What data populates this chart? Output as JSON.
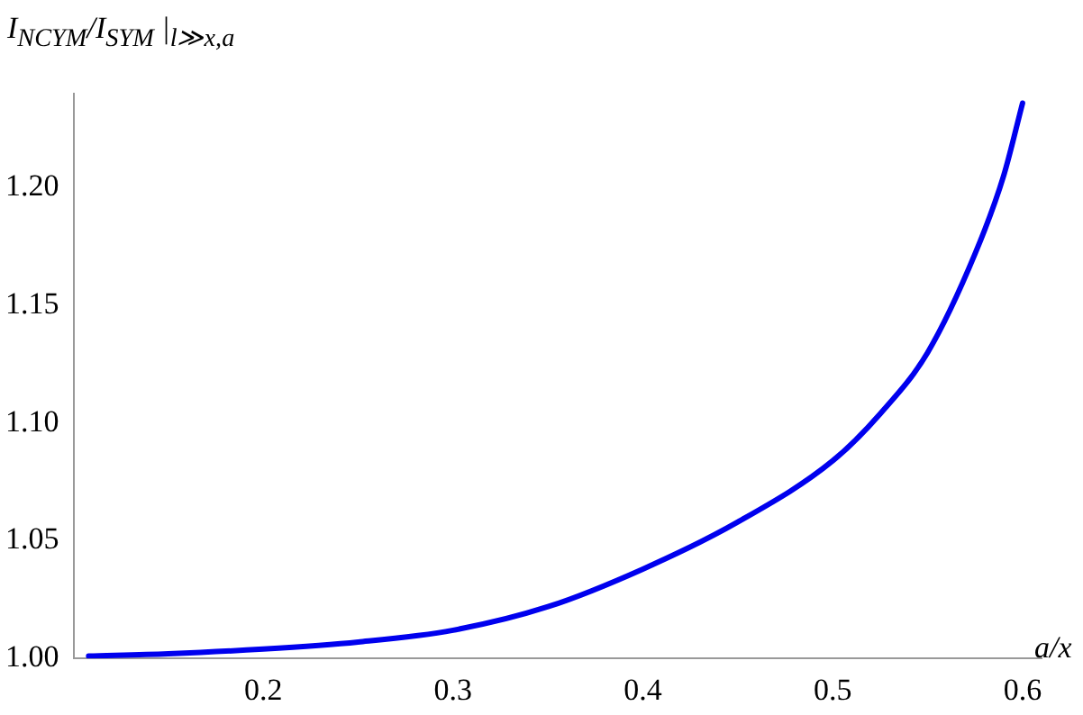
{
  "chart_data": {
    "type": "line",
    "xlabel": "a/x",
    "ylabel": "I$_{NCYM}$/I$_{SYM}$ |$_{l≫x,a}$",
    "xlim": [
      0.1,
      0.61
    ],
    "ylim": [
      1.0,
      1.24
    ],
    "xticks": [
      0.2,
      0.3,
      0.4,
      0.5,
      0.6
    ],
    "yticks": [
      {
        "value": 1.0,
        "label": "1.00"
      },
      1.05,
      {
        "value": 1.1,
        "label": "1.10"
      },
      1.15,
      {
        "value": 1.2,
        "label": "1.20"
      }
    ],
    "grid": false,
    "legend": false,
    "marker": "none",
    "line_style": "solid",
    "series": [
      {
        "color": "#0000ee",
        "x": [
          0.108,
          0.15,
          0.2,
          0.25,
          0.3,
          0.35,
          0.4,
          0.45,
          0.5,
          0.525,
          0.55,
          0.575,
          0.59,
          0.6
        ],
        "values": [
          1.001,
          1.002,
          1.004,
          1.007,
          1.012,
          1.022,
          1.038,
          1.058,
          1.084,
          1.104,
          1.13,
          1.172,
          1.205,
          1.236
        ]
      }
    ]
  }
}
